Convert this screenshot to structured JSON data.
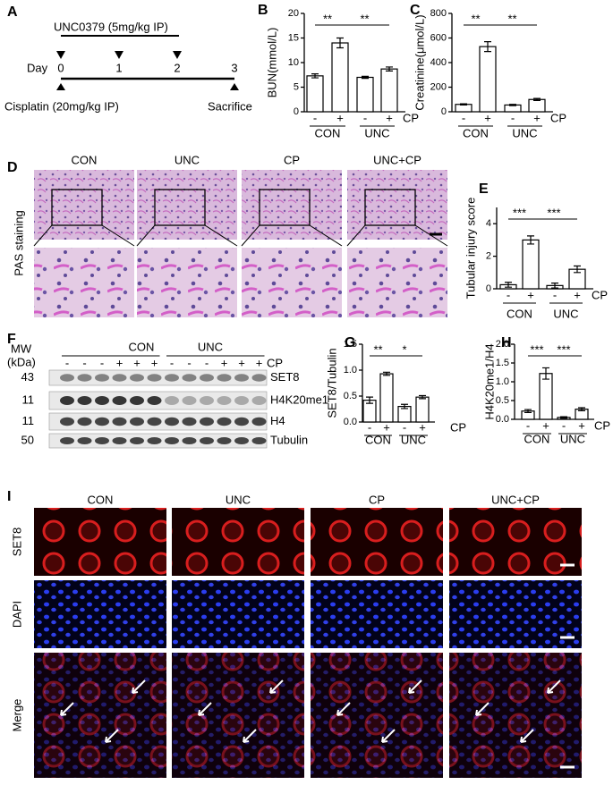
{
  "panel_labels": [
    "A",
    "B",
    "C",
    "D",
    "E",
    "F",
    "G",
    "H",
    "I"
  ],
  "timeline": {
    "treatment": "UNC0379 (5mg/kg IP)",
    "day_label": "Day",
    "days": [
      "0",
      "1",
      "2",
      "3"
    ],
    "injury": "Cisplatin (20mg/kg IP)",
    "endpoint": "Sacrifice"
  },
  "histology": {
    "groups": [
      "CON",
      "UNC",
      "CP",
      "UNC+CP"
    ],
    "stain": "PAS staining"
  },
  "western": {
    "mw_label": "MW",
    "mw_unit": "(kDa)",
    "groups": [
      "CON",
      "UNC"
    ],
    "lanes": [
      "-",
      "-",
      "-",
      "+",
      "+",
      "+",
      "-",
      "-",
      "-",
      "+",
      "+",
      "+"
    ],
    "treatment": "CP",
    "blots": [
      {
        "mw": "43",
        "name": "SET8"
      },
      {
        "mw": "11",
        "name": "H4K20me1"
      },
      {
        "mw": "11",
        "name": "H4"
      },
      {
        "mw": "50",
        "name": "Tubulin"
      }
    ]
  },
  "immunofluorescence": {
    "groups": [
      "CON",
      "UNC",
      "CP",
      "UNC+CP"
    ],
    "channels": [
      "SET8",
      "DAPI",
      "Merge"
    ]
  },
  "chart_data": [
    {
      "type": "bar",
      "ylabel": "BUN(mmol/L)",
      "categories": [
        "-",
        "+",
        "-",
        "+"
      ],
      "groups": [
        "CON",
        "UNC"
      ],
      "series_label": "CP",
      "values": [
        7.3,
        14,
        7,
        8.7
      ],
      "errors": [
        0.4,
        1,
        0.2,
        0.4
      ],
      "ylim": [
        0,
        20
      ],
      "yticks": [
        0,
        5,
        10,
        15,
        20
      ],
      "significance": [
        "**",
        "**"
      ]
    },
    {
      "type": "bar",
      "ylabel": "Creatinine(μmol/L)",
      "categories": [
        "-",
        "+",
        "-",
        "+"
      ],
      "groups": [
        "CON",
        "UNC"
      ],
      "series_label": "CP",
      "values": [
        60,
        530,
        55,
        100
      ],
      "errors": [
        5,
        40,
        5,
        8
      ],
      "ylim": [
        0,
        800
      ],
      "yticks": [
        0,
        200,
        400,
        600,
        800
      ],
      "significance": [
        "**",
        "**"
      ]
    },
    {
      "type": "bar",
      "ylabel": "Tubular injury score",
      "categories": [
        "-",
        "+",
        "-",
        "+"
      ],
      "groups": [
        "CON",
        "UNC"
      ],
      "series_label": "CP",
      "values": [
        0.25,
        3,
        0.2,
        1.2
      ],
      "errors": [
        0.15,
        0.25,
        0.15,
        0.2
      ],
      "ylim": [
        0,
        5
      ],
      "yticks": [
        0,
        2,
        4
      ],
      "significance": [
        "***",
        "***"
      ]
    },
    {
      "type": "bar",
      "ylabel": "SET8/Tubulin",
      "categories": [
        "-",
        "+",
        "-",
        "+"
      ],
      "groups": [
        "CON",
        "UNC"
      ],
      "series_label": "CP",
      "values": [
        0.42,
        0.93,
        0.3,
        0.48
      ],
      "errors": [
        0.06,
        0.03,
        0.04,
        0.03
      ],
      "ylim": [
        0,
        1.5
      ],
      "yticks": [
        {
          "value": 0,
          "label": "0.0"
        },
        0.5,
        {
          "value": 1,
          "label": "1.0"
        },
        1.5
      ],
      "significance": [
        "**",
        "*"
      ]
    },
    {
      "type": "bar",
      "ylabel": "H4K20me1/H4",
      "categories": [
        "-",
        "+",
        "-",
        "+"
      ],
      "groups": [
        "CON",
        "UNC"
      ],
      "series_label": "CP",
      "values": [
        0.22,
        1.22,
        0.05,
        0.27
      ],
      "errors": [
        0.04,
        0.15,
        0.02,
        0.04
      ],
      "ylim": [
        0,
        2
      ],
      "yticks": [
        {
          "value": 0,
          "label": "0.0"
        },
        0.5,
        {
          "value": 1,
          "label": "1.0"
        },
        1.5,
        {
          "value": 2,
          "label": "2.0"
        }
      ],
      "significance": [
        "***",
        "***"
      ]
    }
  ]
}
